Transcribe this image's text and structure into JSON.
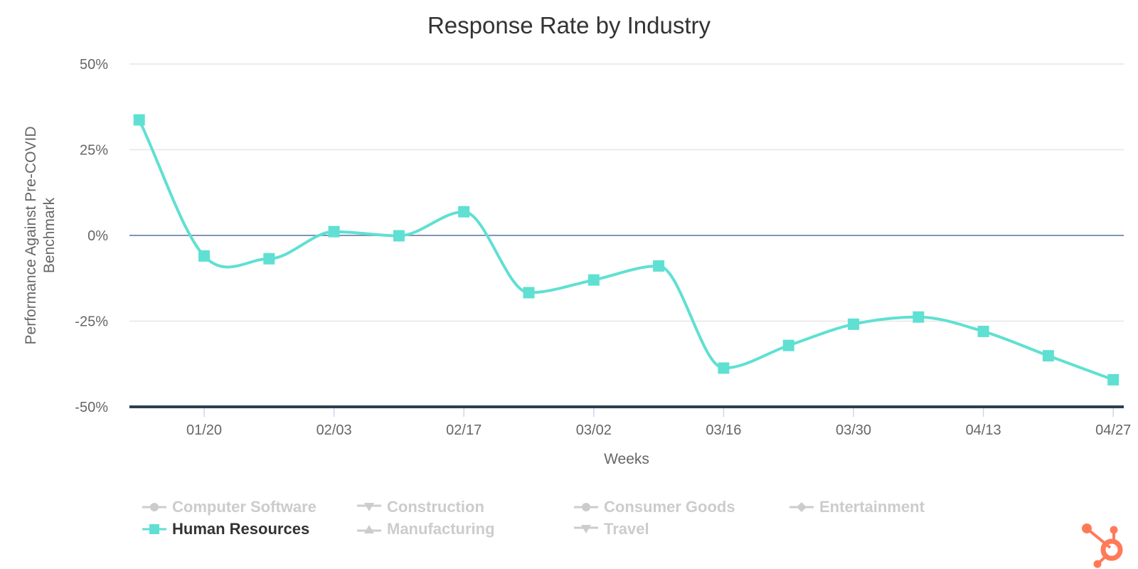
{
  "chart_data": {
    "type": "line",
    "title": "Response Rate by Industry",
    "xlabel": "Weeks",
    "ylabel": [
      "Performance Against Pre-COVID",
      "Benchmark"
    ],
    "ylim": [
      -50,
      50
    ],
    "yticks": [
      50,
      25,
      0,
      -25,
      -50
    ],
    "ytick_labels": [
      "50%",
      "25%",
      "0%",
      "-25%",
      "-50%"
    ],
    "x": [
      "01/13",
      "01/20",
      "01/27",
      "02/03",
      "02/10",
      "02/17",
      "02/24",
      "03/02",
      "03/09",
      "03/16",
      "03/23",
      "03/30",
      "04/06",
      "04/13",
      "04/20",
      "04/27"
    ],
    "xtick_labels": [
      "01/20",
      "02/03",
      "02/17",
      "03/02",
      "03/16",
      "03/30",
      "04/13",
      "04/27"
    ],
    "grid": true,
    "legend_position": "bottom",
    "series": [
      {
        "name": "Human Resources",
        "color": "#5fe0d2",
        "marker": "square",
        "visible": true,
        "values": [
          33.7,
          -6.0,
          -6.8,
          1.1,
          -0.1,
          6.9,
          -16.7,
          -13.0,
          -8.9,
          -38.7,
          -32.1,
          -25.9,
          -23.8,
          -28.0,
          -35.1,
          -42.1
        ]
      }
    ],
    "legend": [
      {
        "name": "Computer Software",
        "symbol": "circle",
        "active": false
      },
      {
        "name": "Construction",
        "symbol": "triangle-down",
        "active": false
      },
      {
        "name": "Consumer Goods",
        "symbol": "circle",
        "active": false
      },
      {
        "name": "Entertainment",
        "symbol": "diamond",
        "active": false
      },
      {
        "name": "Human Resources",
        "symbol": "square",
        "active": true
      },
      {
        "name": "Manufacturing",
        "symbol": "triangle",
        "active": false
      },
      {
        "name": "Travel",
        "symbol": "triangle-down",
        "active": false
      }
    ]
  },
  "colors": {
    "series": "#5fe0d2",
    "grid": "#e6e6e6",
    "zero_line": "#7f96b5",
    "x_axis": "#2c3e50",
    "tick": "#ccd6eb",
    "legend_inactive": "#cccccc",
    "legend_active": "#333333",
    "logo": "#ff7a59"
  },
  "branding": {
    "logo_icon": "hubspot-sprocket-icon"
  }
}
